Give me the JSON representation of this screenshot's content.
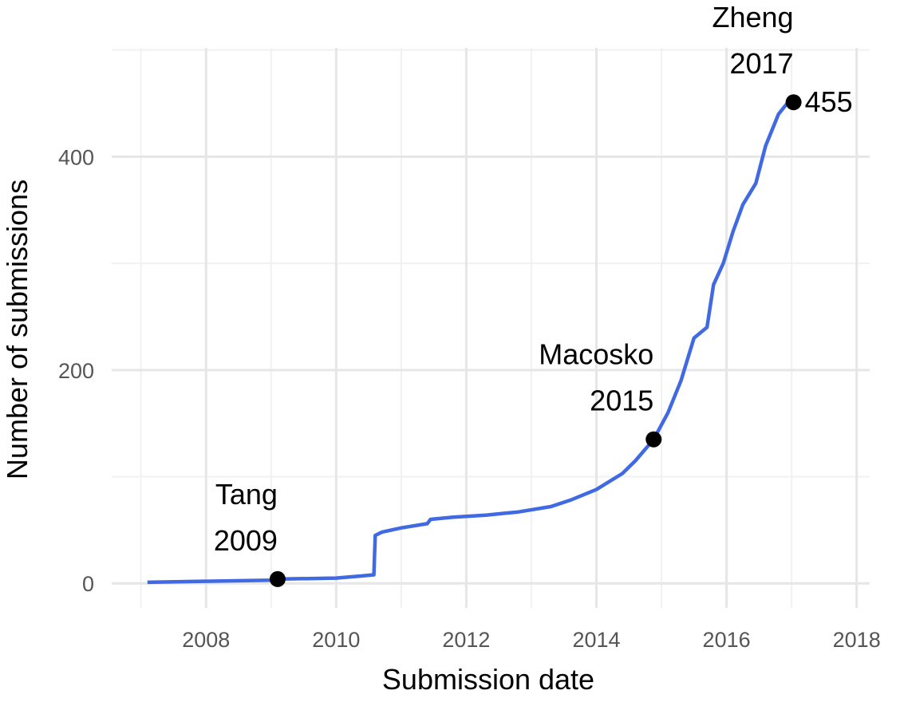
{
  "chart_data": {
    "type": "line",
    "title": "",
    "xlabel": "Submission date",
    "ylabel": "Number of submissions",
    "xlim": [
      2006.55,
      2018.2
    ],
    "ylim": [
      -23,
      502
    ],
    "x_ticks": [
      2008,
      2010,
      2012,
      2014,
      2016,
      2018
    ],
    "y_ticks": [
      0,
      200,
      400
    ],
    "grid": true,
    "legend": "none",
    "line_color": "#4169E1",
    "point_color": "#000000",
    "series": [
      {
        "values": [
          [
            2007.1,
            1
          ],
          [
            2008.0,
            2
          ],
          [
            2009.0,
            3
          ],
          [
            2009.1,
            4
          ],
          [
            2010.0,
            5
          ],
          [
            2010.4,
            7
          ],
          [
            2010.58,
            8
          ],
          [
            2010.6,
            45
          ],
          [
            2010.7,
            48
          ],
          [
            2011.0,
            52
          ],
          [
            2011.4,
            56
          ],
          [
            2011.45,
            60
          ],
          [
            2011.8,
            62
          ],
          [
            2012.3,
            64
          ],
          [
            2012.8,
            67
          ],
          [
            2013.3,
            72
          ],
          [
            2013.6,
            78
          ],
          [
            2014.0,
            88
          ],
          [
            2014.4,
            103
          ],
          [
            2014.6,
            115
          ],
          [
            2014.88,
            135
          ],
          [
            2015.1,
            160
          ],
          [
            2015.3,
            190
          ],
          [
            2015.5,
            230
          ],
          [
            2015.7,
            240
          ],
          [
            2015.8,
            280
          ],
          [
            2015.95,
            300
          ],
          [
            2016.1,
            330
          ],
          [
            2016.25,
            355
          ],
          [
            2016.45,
            375
          ],
          [
            2016.6,
            410
          ],
          [
            2016.8,
            440
          ],
          [
            2017.0,
            455
          ]
        ]
      }
    ],
    "annotations": [
      {
        "x": 2009.1,
        "y": 4,
        "text_lines": [
          "Tang",
          "2009"
        ]
      },
      {
        "x": 2014.88,
        "y": 135,
        "text_lines": [
          "Macosko",
          "2015"
        ]
      },
      {
        "x": 2017.03,
        "y": 451,
        "text_lines": [
          "Zheng",
          "2017"
        ],
        "value_label": "455"
      }
    ]
  }
}
